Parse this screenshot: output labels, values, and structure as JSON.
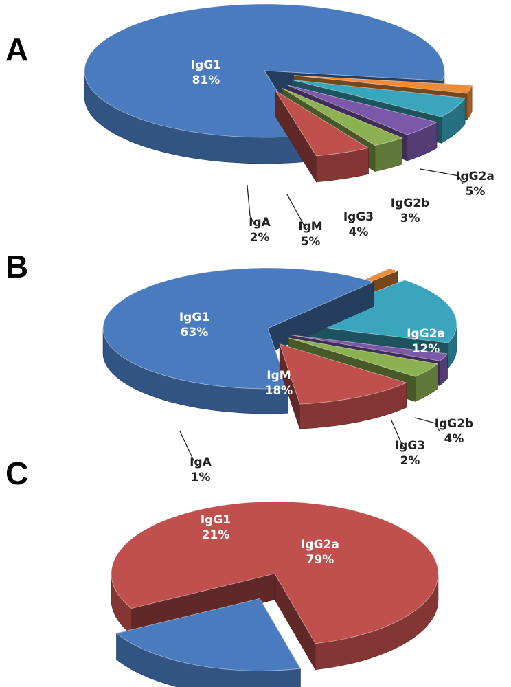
{
  "colors": {
    "IgG1": "#4a7bbf",
    "IgA": "#ec8c3a",
    "IgM": "#3aa5bd",
    "IgG3": "#7b59a8",
    "IgG2b": "#8db152",
    "IgG2a": "#c0504d"
  },
  "chart_data": [
    {
      "type": "pie",
      "panel": "A",
      "slices": [
        {
          "label": "IgG1",
          "pct_text": "81%",
          "value": 81,
          "exploded": false,
          "label_pos": "inside"
        },
        {
          "label": "IgA",
          "pct_text": "2%",
          "value": 2,
          "exploded": true,
          "label_pos": "outside"
        },
        {
          "label": "IgM",
          "pct_text": "5%",
          "value": 5,
          "exploded": true,
          "label_pos": "outside"
        },
        {
          "label": "IgG3",
          "pct_text": "4%",
          "value": 4,
          "exploded": true,
          "label_pos": "outside"
        },
        {
          "label": "IgG2b",
          "pct_text": "3%",
          "value": 3,
          "exploded": true,
          "label_pos": "outside"
        },
        {
          "label": "IgG2a",
          "pct_text": "5%",
          "value": 5,
          "exploded": true,
          "label_pos": "outside"
        }
      ]
    },
    {
      "type": "pie",
      "panel": "B",
      "slices": [
        {
          "label": "IgG1",
          "pct_text": "63%",
          "value": 63,
          "exploded": false,
          "label_pos": "inside"
        },
        {
          "label": "IgA",
          "pct_text": "1%",
          "value": 1,
          "exploded": true,
          "label_pos": "outside"
        },
        {
          "label": "IgM",
          "pct_text": "18%",
          "value": 18,
          "exploded": true,
          "label_pos": "inside"
        },
        {
          "label": "IgG3",
          "pct_text": "2%",
          "value": 2,
          "exploded": true,
          "label_pos": "outside"
        },
        {
          "label": "IgG2b",
          "pct_text": "4%",
          "value": 4,
          "exploded": true,
          "label_pos": "outside"
        },
        {
          "label": "IgG2a",
          "pct_text": "12%",
          "value": 12,
          "exploded": true,
          "label_pos": "inside"
        }
      ]
    },
    {
      "type": "pie",
      "panel": "C",
      "slices": [
        {
          "label": "IgG1",
          "pct_text": "21%",
          "value": 21,
          "exploded": true,
          "label_pos": "inside"
        },
        {
          "label": "IgG2a",
          "pct_text": "79%",
          "value": 79,
          "exploded": false,
          "label_pos": "inside"
        }
      ]
    }
  ]
}
